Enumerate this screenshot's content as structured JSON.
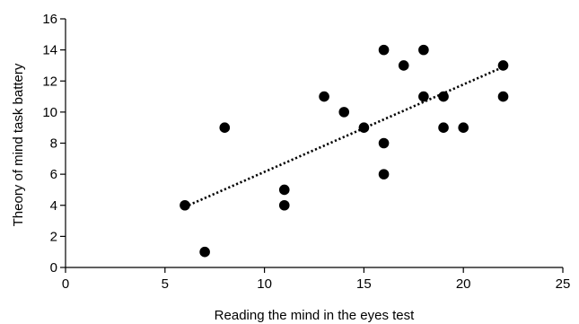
{
  "chart_data": {
    "type": "scatter",
    "title": "",
    "xlabel": "Reading the mind in the eyes test",
    "ylabel": "Theory of mind task battery",
    "xlim": [
      0,
      25
    ],
    "ylim": [
      0,
      16
    ],
    "x_ticks": [
      0,
      5,
      10,
      15,
      20,
      25
    ],
    "y_ticks": [
      0,
      2,
      4,
      6,
      8,
      10,
      12,
      14,
      16
    ],
    "grid": false,
    "legend": "none",
    "points": [
      {
        "x": 6,
        "y": 4
      },
      {
        "x": 7,
        "y": 1
      },
      {
        "x": 8,
        "y": 9
      },
      {
        "x": 11,
        "y": 5
      },
      {
        "x": 11,
        "y": 4
      },
      {
        "x": 13,
        "y": 11
      },
      {
        "x": 14,
        "y": 10
      },
      {
        "x": 15,
        "y": 9
      },
      {
        "x": 16,
        "y": 14
      },
      {
        "x": 16,
        "y": 8
      },
      {
        "x": 16,
        "y": 6
      },
      {
        "x": 17,
        "y": 13
      },
      {
        "x": 18,
        "y": 14
      },
      {
        "x": 18,
        "y": 11
      },
      {
        "x": 19,
        "y": 11
      },
      {
        "x": 19,
        "y": 9
      },
      {
        "x": 20,
        "y": 9
      },
      {
        "x": 22,
        "y": 13
      },
      {
        "x": 22,
        "y": 11
      }
    ],
    "trendline": {
      "style": "dotted",
      "x": [
        6,
        22
      ],
      "y": [
        3.9,
        12.9
      ]
    },
    "colors": {
      "points": "#000000",
      "axes": "#000000",
      "trendline": "#000000"
    }
  }
}
